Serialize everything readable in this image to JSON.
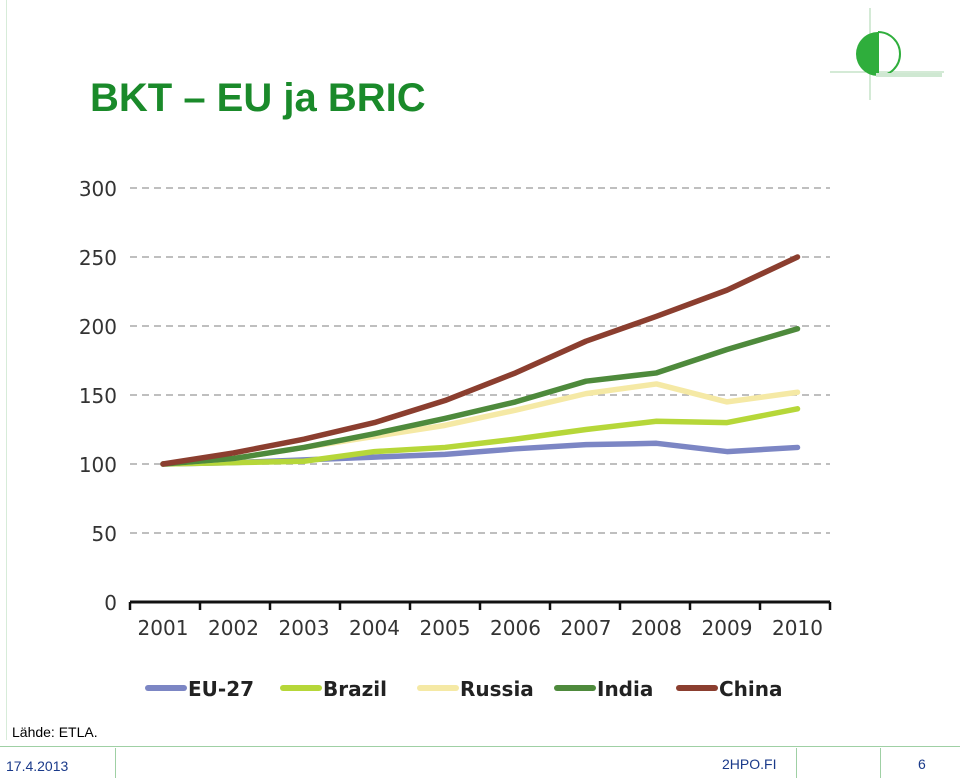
{
  "slide": {
    "title": "BKT – EU ja BRIC",
    "source": "Lähde: ETLA.",
    "footer": {
      "date": "17.4.2013",
      "site": "2HPO.FI",
      "page": "6"
    }
  },
  "chart_data": {
    "type": "line",
    "title": "",
    "xlabel": "",
    "ylabel": "",
    "x": [
      "2001",
      "2002",
      "2003",
      "2004",
      "2005",
      "2006",
      "2007",
      "2008",
      "2009",
      "2010"
    ],
    "yticks": [
      0,
      50,
      100,
      150,
      200,
      250,
      300
    ],
    "ylim": [
      0,
      300
    ],
    "grid": true,
    "legend_position": "bottom",
    "series": [
      {
        "name": "EU-27",
        "color": "#7c86c4",
        "values": [
          100,
          101,
          103,
          105,
          107,
          111,
          114,
          115,
          109,
          112
        ]
      },
      {
        "name": "Brazil",
        "color": "#b6d739",
        "values": [
          100,
          101,
          102,
          109,
          112,
          118,
          125,
          131,
          130,
          140
        ]
      },
      {
        "name": "Russia",
        "color": "#f5e9a5",
        "values": [
          100,
          104,
          112,
          120,
          128,
          139,
          151,
          158,
          145,
          152
        ]
      },
      {
        "name": "India",
        "color": "#4e8a3c",
        "values": [
          100,
          104,
          112,
          122,
          133,
          145,
          160,
          166,
          183,
          198
        ]
      },
      {
        "name": "China",
        "color": "#8b3e2f",
        "values": [
          100,
          108,
          118,
          130,
          146,
          166,
          189,
          207,
          226,
          250
        ]
      }
    ]
  }
}
